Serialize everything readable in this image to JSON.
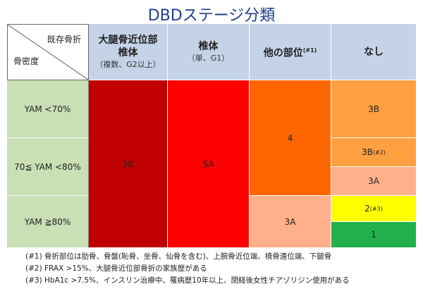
{
  "title": "DBDステージ分類",
  "corner": {
    "top_right": "既存骨折",
    "bottom_left": "骨密度"
  },
  "columns": [
    {
      "main": "大腿骨近位部",
      "main2": "椎体",
      "sub": "（複数、G2以上）"
    },
    {
      "main": "椎体",
      "sub": "（単、G1）"
    },
    {
      "main": "他の部位",
      "sup": "(#1)"
    },
    {
      "main": "なし"
    }
  ],
  "rows": [
    "YAM <70%",
    "70≦ YAM <80%",
    "YAM ≧80%"
  ],
  "stages": {
    "col1": "5B",
    "col2": "5A",
    "col3_top": "4",
    "col3_bottom": "3A",
    "col4_r1": "3B",
    "col4_r2a": "3B",
    "col4_r2a_sup": "(#2)",
    "col4_r2b": "3A",
    "col4_r3a": "2",
    "col4_r3a_sup": "(#3)",
    "col4_r3b": "1"
  },
  "colors": {
    "header": "#c5d3e8",
    "rowlabel": "#c9dfb4",
    "5B": "#c00000",
    "5A": "#ff0000",
    "4": "#ff6600",
    "3B": "#ffa040",
    "3A": "#ffb08a",
    "2": "#ffff00",
    "1": "#22b04c"
  },
  "notes": [
    "(#1) 骨折部位は肋骨、骨盤(恥骨、坐骨、仙骨を含む)、上腕骨近位端、橈骨遠位端、下腿骨",
    "(#2) FRAX >15%、大腿骨近位部骨折の家族歴がある",
    "(#3) HbA1c >7.5%、インスリン治療中、罹病歴10年以上、閉経後女性チアゾリジン使用がある"
  ]
}
